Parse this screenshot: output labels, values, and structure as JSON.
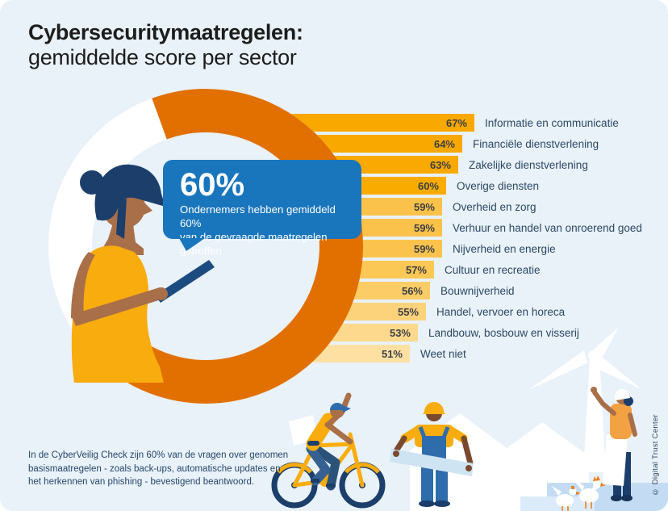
{
  "page": {
    "background": "#ffffff",
    "card_background": "#e9f1f9"
  },
  "header": {
    "title_line1": "Cybersecuritymaatregelen:",
    "title_line2": "gemiddelde score per sector"
  },
  "callout": {
    "headline": "60%",
    "line1": "Ondernemers hebben gemiddeld 60%",
    "line2": "van de gevraagde maatregelen getroffen",
    "background": "#1a76bc"
  },
  "chart_data": {
    "type": "bar",
    "orientation": "horizontal",
    "title": "Cybersecuritymaatregelen: gemiddelde score per sector",
    "unit": "%",
    "xlim": [
      0,
      100
    ],
    "categories": [
      "Informatie en communicatie",
      "Financiële dienstverlening",
      "Zakelijke dienstverlening",
      "Overige diensten",
      "Overheid en zorg",
      "Verhuur en handel van onroerend goed",
      "Nijverheid en energie",
      "Cultuur en recreatie",
      "Bouwnijverheid",
      "Handel, vervoer en horeca",
      "Landbouw, bosbouw en visserij",
      "Weet niet"
    ],
    "values": [
      67,
      64,
      63,
      60,
      59,
      59,
      59,
      57,
      56,
      55,
      53,
      51
    ],
    "bar_colors": [
      "#f9a800",
      "#f9a800",
      "#f9a902",
      "#faab00",
      "#fbc24b",
      "#fbc24b",
      "#fbc34e",
      "#fbc755",
      "#fccc67",
      "#fcd27a",
      "#fdd98d",
      "#fde0a2"
    ],
    "overall_average": {
      "value": 60,
      "unit": "%",
      "description": "Ondernemers hebben gemiddeld 60% van de gevraagde maatregelen getroffen"
    }
  },
  "footer": {
    "lines": [
      "In de CyberVeilig Check zijn 60% van de vragen over genomen",
      "basismaatregelen - zoals back-ups, automatische updates en",
      "het herkennen van phishing - bevestigend beantwoord."
    ]
  },
  "credit": {
    "text": "© Digital Trust Center"
  },
  "colors": {
    "ring_orange": "#e17000",
    "navy": "#1c3e6b",
    "tablet_navy": "#1c4b80",
    "steel_blue": "#2f6cab",
    "jeans_blue": "#35608f",
    "jeans_dark": "#2b5379",
    "yellow": "#f8ac0e",
    "orange_shirt": "#f2a243",
    "skin": "#a96f49",
    "skin_dark": "#7a4a2e",
    "plank_blue": "#cfe4f3",
    "block_blue": "#c3dcf3",
    "block_blue_light": "#dcebf9",
    "comb_orange": "#e8821e",
    "white": "#ffffff"
  }
}
